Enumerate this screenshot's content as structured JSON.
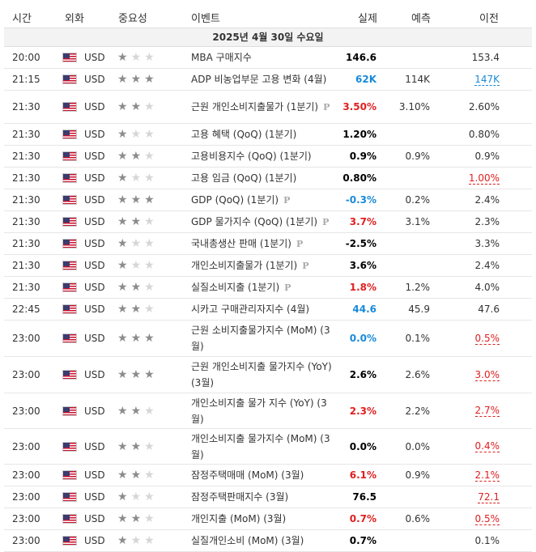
{
  "headers": {
    "time": "시간",
    "currency": "외화",
    "importance": "중요성",
    "event": "이벤트",
    "actual": "실제",
    "forecast": "예측",
    "previous": "이전"
  },
  "date_label": "2025년 4월 30일 수요일",
  "colors": {
    "red": "#e02020",
    "blue": "#1a8ad8",
    "black": "#000000"
  },
  "rows": [
    {
      "time": "20:00",
      "currency": "USD",
      "importance": 1,
      "event": "MBA 구매지수",
      "prelim": false,
      "actual": "146.6",
      "actual_color": "black",
      "forecast": "",
      "previous": "153.4",
      "previous_revised": false
    },
    {
      "time": "21:15",
      "currency": "USD",
      "importance": 3,
      "event": "ADP 비농업부문 고용 변화 (4월)",
      "prelim": false,
      "actual": "62K",
      "actual_color": "blue",
      "forecast": "114K",
      "previous": "147K",
      "previous_revised": true,
      "previous_color": "blue"
    },
    {
      "time": "21:30",
      "currency": "USD",
      "importance": 2,
      "event": "근원 개인소비지출물가 (1분기)",
      "prelim": true,
      "prelim_label": "P",
      "actual": "3.50%",
      "actual_color": "red",
      "forecast": "3.10%",
      "previous": "2.60%",
      "previous_revised": false
    },
    {
      "time": "21:30",
      "currency": "USD",
      "importance": 1,
      "event": "고용 혜택 (QoQ) (1분기)",
      "prelim": false,
      "actual": "1.20%",
      "actual_color": "black",
      "forecast": "",
      "previous": "0.80%",
      "previous_revised": false
    },
    {
      "time": "21:30",
      "currency": "USD",
      "importance": 2,
      "event": "고용비용지수 (QoQ) (1분기)",
      "prelim": false,
      "actual": "0.9%",
      "actual_color": "black",
      "forecast": "0.9%",
      "previous": "0.9%",
      "previous_revised": false
    },
    {
      "time": "21:30",
      "currency": "USD",
      "importance": 1,
      "event": "고용 임금 (QoQ) (1분기)",
      "prelim": false,
      "actual": "0.80%",
      "actual_color": "black",
      "forecast": "",
      "previous": "1.00%",
      "previous_revised": true,
      "previous_color": "red"
    },
    {
      "time": "21:30",
      "currency": "USD",
      "importance": 3,
      "event": "GDP (QoQ) (1분기)",
      "prelim": true,
      "prelim_label": "P",
      "actual": "-0.3%",
      "actual_color": "blue",
      "forecast": "0.2%",
      "previous": "2.4%",
      "previous_revised": false
    },
    {
      "time": "21:30",
      "currency": "USD",
      "importance": 2,
      "event": "GDP 물가지수 (QoQ) (1분기)",
      "prelim": true,
      "prelim_label": "P",
      "actual": "3.7%",
      "actual_color": "red",
      "forecast": "3.1%",
      "previous": "2.3%",
      "previous_revised": false
    },
    {
      "time": "21:30",
      "currency": "USD",
      "importance": 1,
      "event": "국내총생산 판매 (1분기)",
      "prelim": true,
      "prelim_label": "P",
      "actual": "-2.5%",
      "actual_color": "black",
      "forecast": "",
      "previous": "3.3%",
      "previous_revised": false
    },
    {
      "time": "21:30",
      "currency": "USD",
      "importance": 1,
      "event": "개인소비지출물가 (1분기)",
      "prelim": true,
      "prelim_label": "P",
      "actual": "3.6%",
      "actual_color": "black",
      "forecast": "",
      "previous": "2.4%",
      "previous_revised": false
    },
    {
      "time": "21:30",
      "currency": "USD",
      "importance": 2,
      "event": "실질소비지출 (1분기)",
      "prelim": true,
      "prelim_label": "P",
      "actual": "1.8%",
      "actual_color": "red",
      "forecast": "1.2%",
      "previous": "4.0%",
      "previous_revised": false
    },
    {
      "time": "22:45",
      "currency": "USD",
      "importance": 2,
      "event": "시카고 구매관리자지수 (4월)",
      "prelim": false,
      "actual": "44.6",
      "actual_color": "blue",
      "forecast": "45.9",
      "previous": "47.6",
      "previous_revised": false
    },
    {
      "time": "23:00",
      "currency": "USD",
      "importance": 3,
      "event": "근원 소비지출물가지수 (MoM) (3월)",
      "prelim": false,
      "actual": "0.0%",
      "actual_color": "blue",
      "forecast": "0.1%",
      "previous": "0.5%",
      "previous_revised": true,
      "previous_color": "red"
    },
    {
      "time": "23:00",
      "currency": "USD",
      "importance": 3,
      "event": "근원 개인소비지출 물가지수 (YoY) (3월)",
      "prelim": false,
      "actual": "2.6%",
      "actual_color": "black",
      "forecast": "2.6%",
      "previous": "3.0%",
      "previous_revised": true,
      "previous_color": "red"
    },
    {
      "time": "23:00",
      "currency": "USD",
      "importance": 2,
      "event": "개인소비지출 물가 지수 (YoY) (3월)",
      "prelim": false,
      "actual": "2.3%",
      "actual_color": "red",
      "forecast": "2.2%",
      "previous": "2.7%",
      "previous_revised": true,
      "previous_color": "red"
    },
    {
      "time": "23:00",
      "currency": "USD",
      "importance": 2,
      "event": "개인소비지출 물가지수 (MoM) (3월)",
      "prelim": false,
      "actual": "0.0%",
      "actual_color": "black",
      "forecast": "0.0%",
      "previous": "0.4%",
      "previous_revised": true,
      "previous_color": "red"
    },
    {
      "time": "23:00",
      "currency": "USD",
      "importance": 2,
      "event": "잠정주택매매 (MoM) (3월)",
      "prelim": false,
      "actual": "6.1%",
      "actual_color": "red",
      "forecast": "0.9%",
      "previous": "2.1%",
      "previous_revised": true,
      "previous_color": "red"
    },
    {
      "time": "23:00",
      "currency": "USD",
      "importance": 1,
      "event": "잠정주택판매지수 (3월)",
      "prelim": false,
      "actual": "76.5",
      "actual_color": "black",
      "forecast": "",
      "previous": "72.1",
      "previous_revised": true,
      "previous_color": "red"
    },
    {
      "time": "23:00",
      "currency": "USD",
      "importance": 2,
      "event": "개인지출 (MoM) (3월)",
      "prelim": false,
      "actual": "0.7%",
      "actual_color": "red",
      "forecast": "0.6%",
      "previous": "0.5%",
      "previous_revised": true,
      "previous_color": "red"
    },
    {
      "time": "23:00",
      "currency": "USD",
      "importance": 1,
      "event": "실질개인소비 (MoM) (3월)",
      "prelim": false,
      "actual": "0.7%",
      "actual_color": "black",
      "forecast": "",
      "previous": "0.1%",
      "previous_revised": false
    }
  ]
}
